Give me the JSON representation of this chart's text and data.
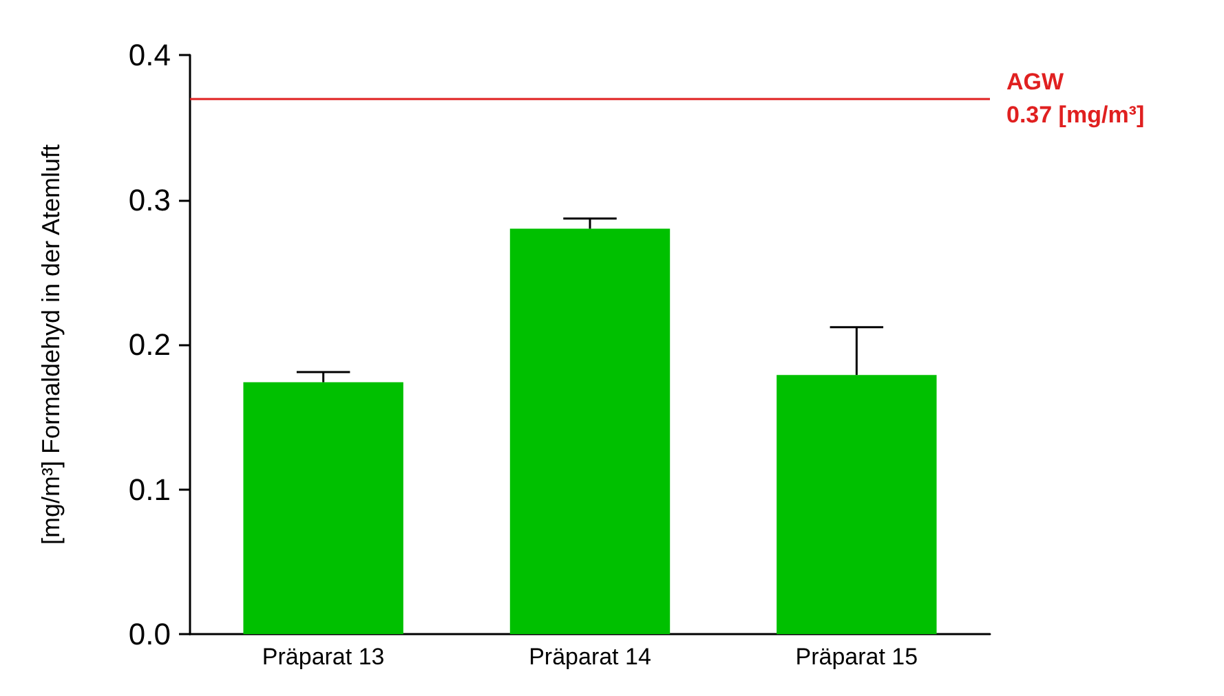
{
  "chart_data": {
    "type": "bar",
    "ylabel": "[mg/m³] Formaldehyd in der Atemluft",
    "categories": [
      "Präparat 13",
      "Präparat 14",
      "Präparat 15"
    ],
    "series": [
      {
        "color": "#00c000",
        "values": [
          0.174,
          0.28,
          0.179
        ],
        "errors": [
          [
            0.174,
            0.181
          ],
          [
            0.28,
            0.287
          ],
          [
            0.179,
            0.212
          ]
        ]
      }
    ],
    "ylim": [
      0,
      0.4
    ],
    "yticks": [
      {
        "value": 0,
        "label": "0.0"
      },
      {
        "value": 0.1,
        "label": "0.1"
      },
      {
        "value": 0.2,
        "label": "0.2"
      },
      {
        "value": 0.3,
        "label": "0.3"
      },
      {
        "value": 0.4,
        "label": "0.4"
      }
    ],
    "ref_lines": [
      {
        "axis": "y",
        "value": 0.37,
        "label": "AGW\n0.37 [mg/m³]",
        "color": "#e02020"
      }
    ],
    "grid": false
  }
}
